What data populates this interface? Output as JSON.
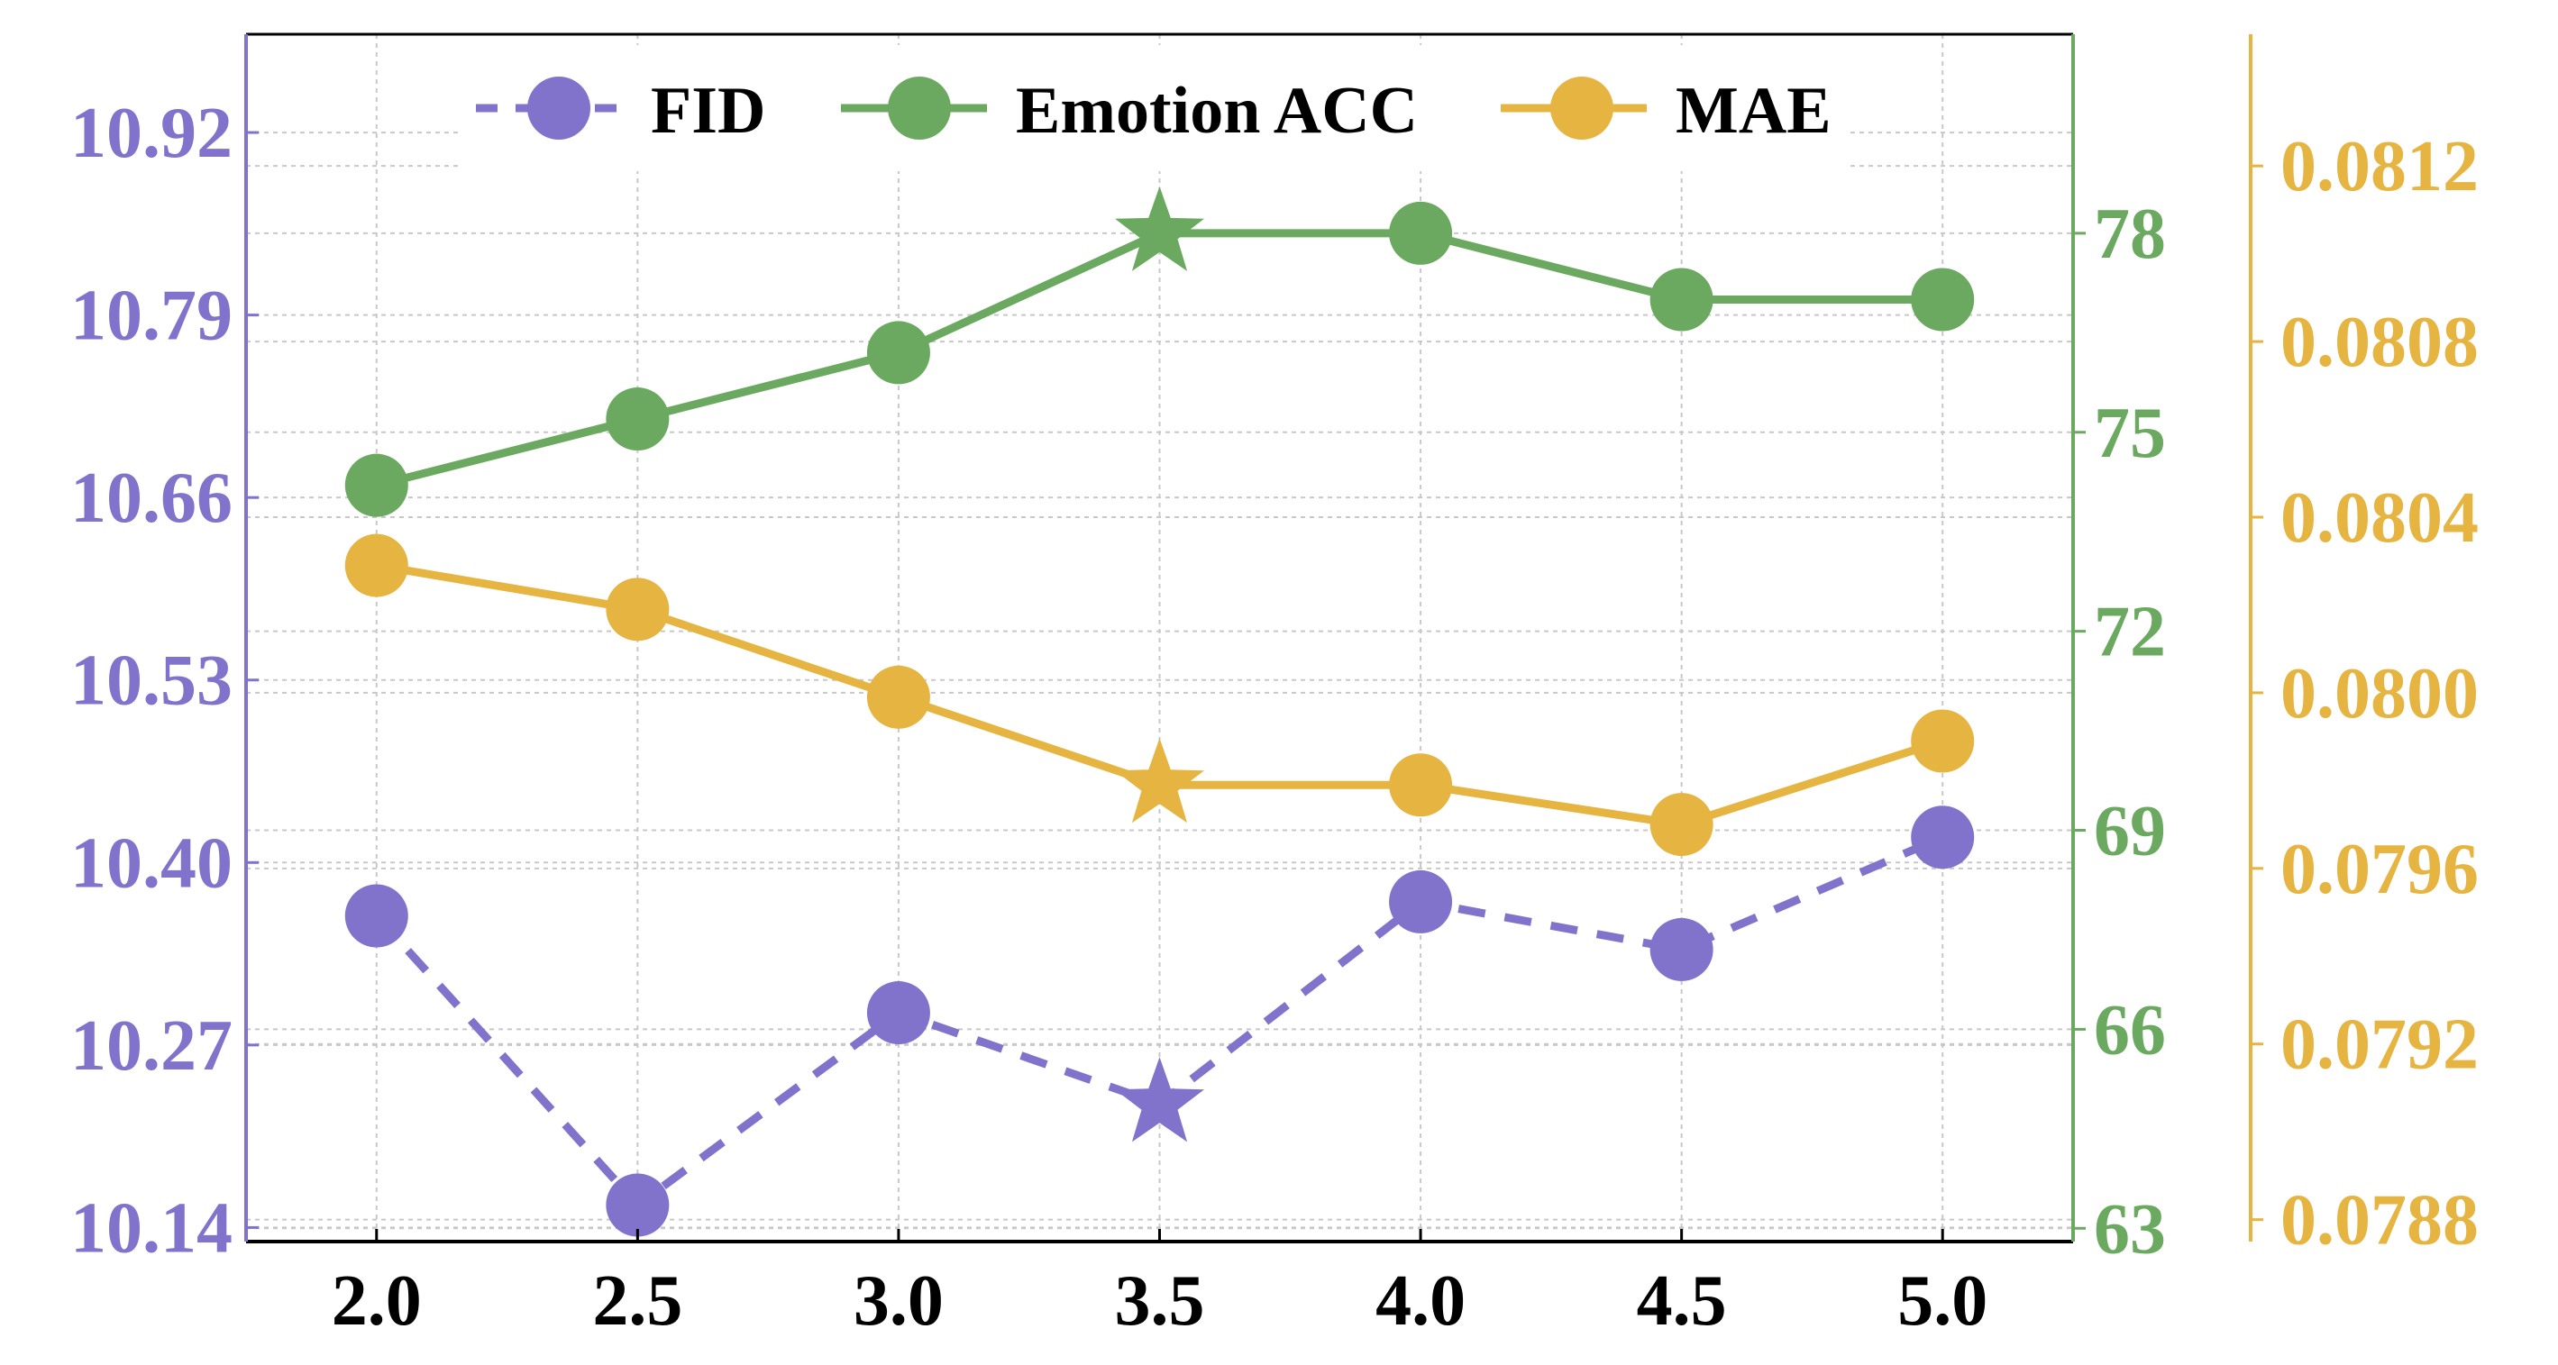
{
  "chart_data": {
    "type": "line",
    "x": [
      2.0,
      2.5,
      3.0,
      3.5,
      4.0,
      4.5,
      5.0
    ],
    "x_tick_labels": [
      "2.0",
      "2.5",
      "3.0",
      "3.5",
      "4.0",
      "4.5",
      "5.0"
    ],
    "xlim": [
      1.75,
      5.25
    ],
    "grid": true,
    "legend_position": "top",
    "series": [
      {
        "name": "FID",
        "axis": "left",
        "color": "#8172CC",
        "line_style": "dashed",
        "values": [
          10.362,
          10.156,
          10.293,
          10.228,
          10.372,
          10.338,
          10.418
        ],
        "best_index": 3
      },
      {
        "name": "Emotion ACC",
        "axis": "right1",
        "color": "#6AA95F",
        "line_style": "solid",
        "values": [
          74.2,
          75.2,
          76.2,
          78.0,
          78.0,
          77.0,
          77.0
        ],
        "best_index": 3
      },
      {
        "name": "MAE",
        "axis": "right2",
        "color": "#E6B440",
        "line_style": "solid",
        "values": [
          0.08029,
          0.08019,
          0.07999,
          0.07979,
          0.07979,
          0.0797,
          0.07989
        ],
        "best_index": 3
      }
    ],
    "axes": {
      "left": {
        "color": "#8172CC",
        "ylim": [
          10.13,
          10.99
        ],
        "ticks": [
          10.14,
          10.27,
          10.4,
          10.53,
          10.66,
          10.79,
          10.92
        ],
        "tick_labels": [
          "10.14",
          "10.27",
          "10.40",
          "10.53",
          "10.66",
          "10.79",
          "10.92"
        ]
      },
      "right1": {
        "color": "#6AA95F",
        "ylim": [
          62.8,
          81.0
        ],
        "ticks": [
          63,
          66,
          69,
          72,
          75,
          78
        ],
        "tick_labels": [
          "63",
          "66",
          "69",
          "72",
          "75",
          "78"
        ]
      },
      "right2": {
        "color": "#E6B440",
        "ylim": [
          0.07875,
          0.0815
        ],
        "ticks": [
          0.0788,
          0.0792,
          0.0796,
          0.08,
          0.0804,
          0.0808,
          0.0812
        ],
        "tick_labels": [
          "0.0788",
          "0.0792",
          "0.0796",
          "0.0800",
          "0.0804",
          "0.0808",
          "0.0812"
        ]
      }
    }
  }
}
